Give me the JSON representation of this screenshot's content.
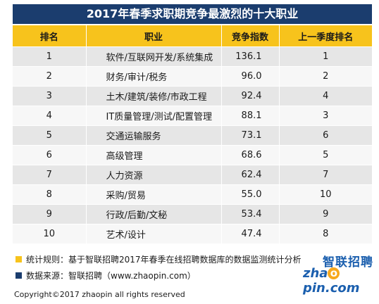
{
  "title": "2017年春季求职期竞争最激烈的十大职业",
  "table": {
    "headers": [
      "排名",
      "职业",
      "竞争指数",
      "上一季度排名"
    ],
    "rows": [
      {
        "rank": "1",
        "job": "软件/互联网开发/系统集成",
        "index": "136.1",
        "prev": "1"
      },
      {
        "rank": "2",
        "job": "财务/审计/税务",
        "index": "96.0",
        "prev": "2"
      },
      {
        "rank": "3",
        "job": "土木/建筑/装修/市政工程",
        "index": "92.4",
        "prev": "4"
      },
      {
        "rank": "4",
        "job": "IT质量管理/测试/配置管理",
        "index": "88.1",
        "prev": "3"
      },
      {
        "rank": "5",
        "job": "交通运输服务",
        "index": "73.1",
        "prev": "6"
      },
      {
        "rank": "6",
        "job": "高级管理",
        "index": "68.6",
        "prev": "5"
      },
      {
        "rank": "7",
        "job": "人力资源",
        "index": "62.4",
        "prev": "7"
      },
      {
        "rank": "8",
        "job": "采购/贸易",
        "index": "55.0",
        "prev": "10"
      },
      {
        "rank": "9",
        "job": "行政/后勤/文秘",
        "index": "53.4",
        "prev": "9"
      },
      {
        "rank": "10",
        "job": "艺术/设计",
        "index": "47.4",
        "prev": "8"
      }
    ]
  },
  "notes": {
    "rule": "统计规则：基于智联招聘2017年春季在线招聘数据库的数据监测统计分析",
    "source": "数据来源：智联招聘（www.zhaopin.com）"
  },
  "logo": {
    "cn": "智联招聘",
    "en_prefix": "zha",
    "en_o": "o",
    "en_suffix": "pin.com"
  },
  "footer": "Copyright©2017 zhaopin all rights reserved",
  "colors": {
    "title_bg": "#1b3d6e",
    "header_bg": "#f7c31c",
    "row_odd": "#e6e6e6",
    "row_even": "#f7f7f7",
    "logo_blue": "#1b5fae",
    "logo_orange": "#f7a81c"
  }
}
